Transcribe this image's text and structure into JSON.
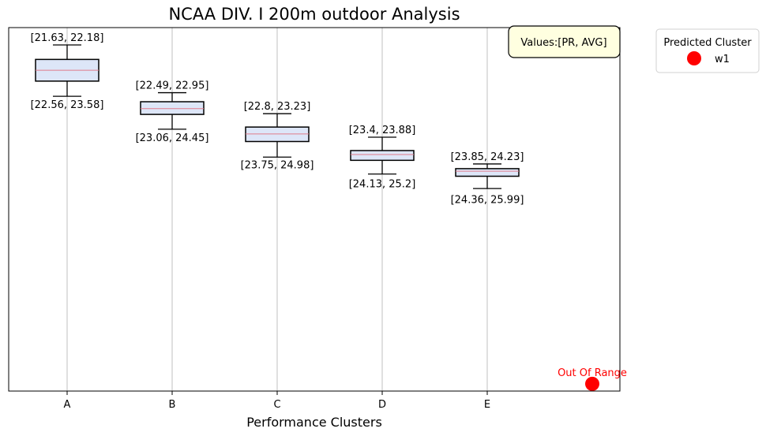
{
  "chart_data": {
    "type": "box",
    "title": "NCAA DIV. I 200m outdoor Analysis",
    "xlabel": "Performance Clusters",
    "ylabel": "",
    "categories": [
      "A",
      "B",
      "C",
      "D",
      "E"
    ],
    "y_inverted": true,
    "y_ticks_visible": false,
    "grid": "x",
    "boxes": [
      {
        "category": "A",
        "whisker_low": 21.63,
        "q1": 22.03,
        "median": 22.33,
        "q3": 22.63,
        "whisker_high": 23.05,
        "top_label": "[21.63, 22.18]",
        "bottom_label": "[22.56, 23.58]"
      },
      {
        "category": "B",
        "whisker_low": 22.95,
        "q1": 23.2,
        "median": 23.39,
        "q3": 23.55,
        "whisker_high": 23.96,
        "top_label": "[22.49, 22.95]",
        "bottom_label": "[23.06, 24.45]"
      },
      {
        "category": "C",
        "whisker_low": 23.53,
        "q1": 23.9,
        "median": 24.09,
        "q3": 24.3,
        "whisker_high": 24.73,
        "top_label": "[22.8, 23.23]",
        "bottom_label": "[23.75, 24.98]"
      },
      {
        "category": "D",
        "whisker_low": 24.18,
        "q1": 24.55,
        "median": 24.66,
        "q3": 24.82,
        "whisker_high": 25.2,
        "top_label": "[23.4, 23.88]",
        "bottom_label": "[24.13, 25.2]"
      },
      {
        "category": "E",
        "whisker_low": 24.92,
        "q1": 25.05,
        "median": 25.12,
        "q3": 25.26,
        "whisker_high": 25.6,
        "top_label": "[23.85, 24.23]",
        "bottom_label": "[24.36, 25.99]"
      }
    ],
    "prediction": {
      "label": "Out Of Range",
      "name": "w1",
      "color": "#ff0000",
      "y": 31.0
    },
    "info_box": "Values:[PR, AVG]",
    "legend": {
      "title": "Predicted Cluster",
      "entries": [
        {
          "name": "w1",
          "color": "#ff0000"
        }
      ],
      "placement": "outside-top-right"
    },
    "ylim": [
      21.15,
      31.2
    ],
    "box_fill": "#dde6f8",
    "median_color": "#e07b8a"
  }
}
